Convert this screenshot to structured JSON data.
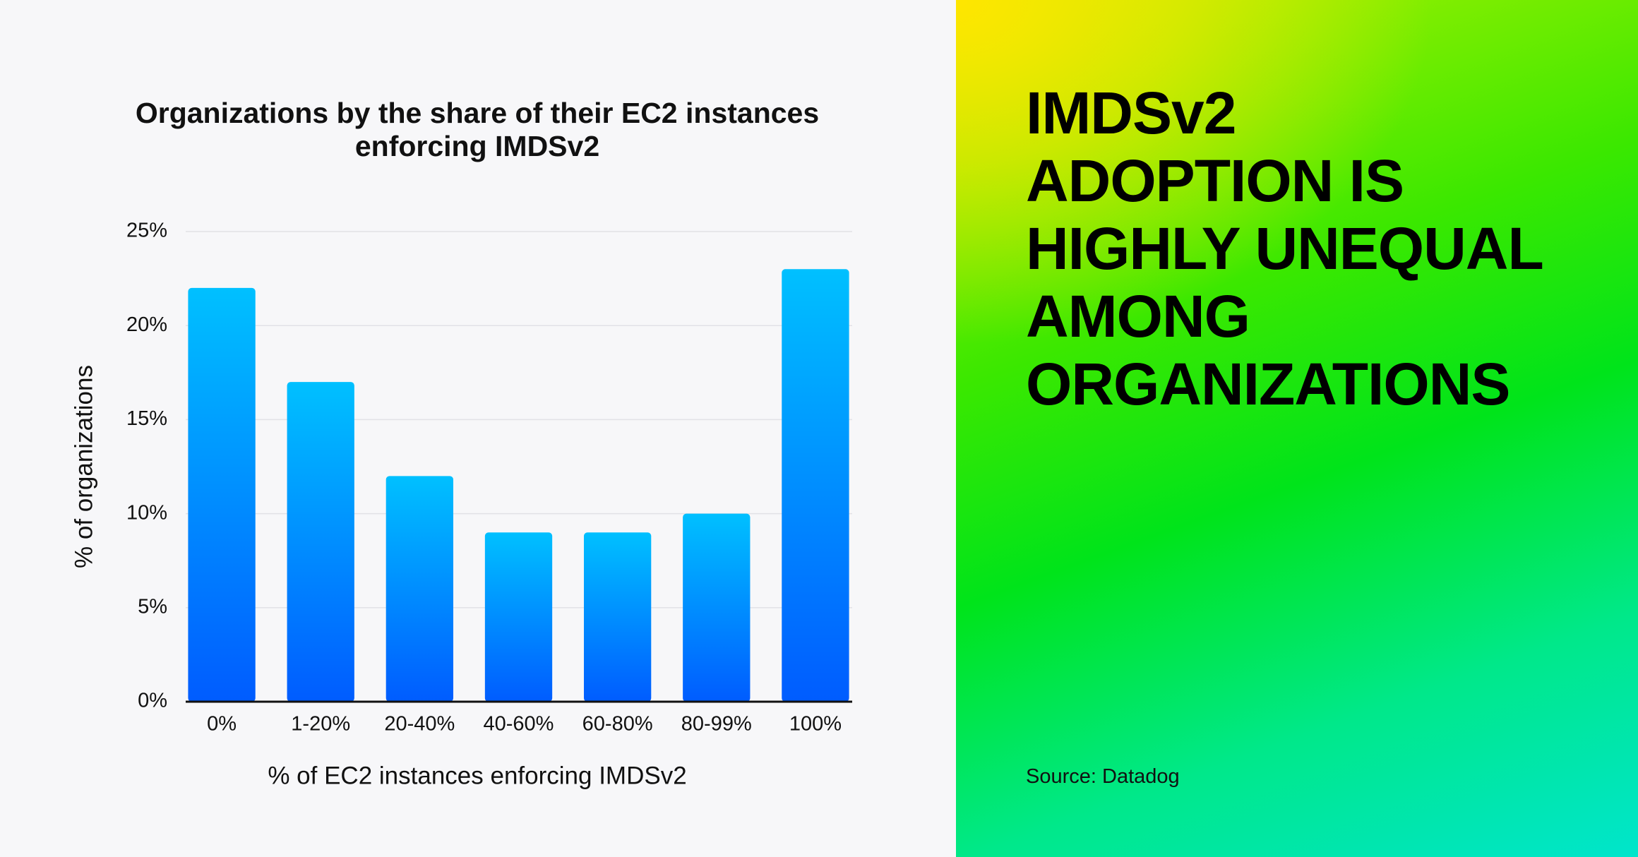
{
  "chart_data": {
    "type": "bar",
    "title": "Organizations by the share of their EC2 instances enforcing IMDSv2",
    "x_label": "% of EC2 instances enforcing IMDSv2",
    "y_label": "% of organizations",
    "categories": [
      "0%",
      "1-20%",
      "20-40%",
      "40-60%",
      "60-80%",
      "80-99%",
      "100%"
    ],
    "values": [
      22,
      17,
      12,
      9,
      9,
      10,
      23
    ],
    "color": "#0a84ff",
    "ylim": [
      0,
      25
    ],
    "yticks": [
      {
        "value": 0,
        "label": "0%"
      },
      {
        "value": 5,
        "label": "5%"
      },
      {
        "value": 10,
        "label": "10%"
      },
      {
        "value": 15,
        "label": "15%"
      },
      {
        "value": 20,
        "label": "20%"
      },
      {
        "value": 25,
        "label": "25%"
      }
    ],
    "grid": true
  },
  "headline": {
    "lines": [
      "IMDSv2",
      "ADOPTION IS",
      "HIGHLY UNEQUAL",
      "AMONG",
      "ORGANIZATIONS"
    ]
  },
  "source": "Source: Datadog"
}
